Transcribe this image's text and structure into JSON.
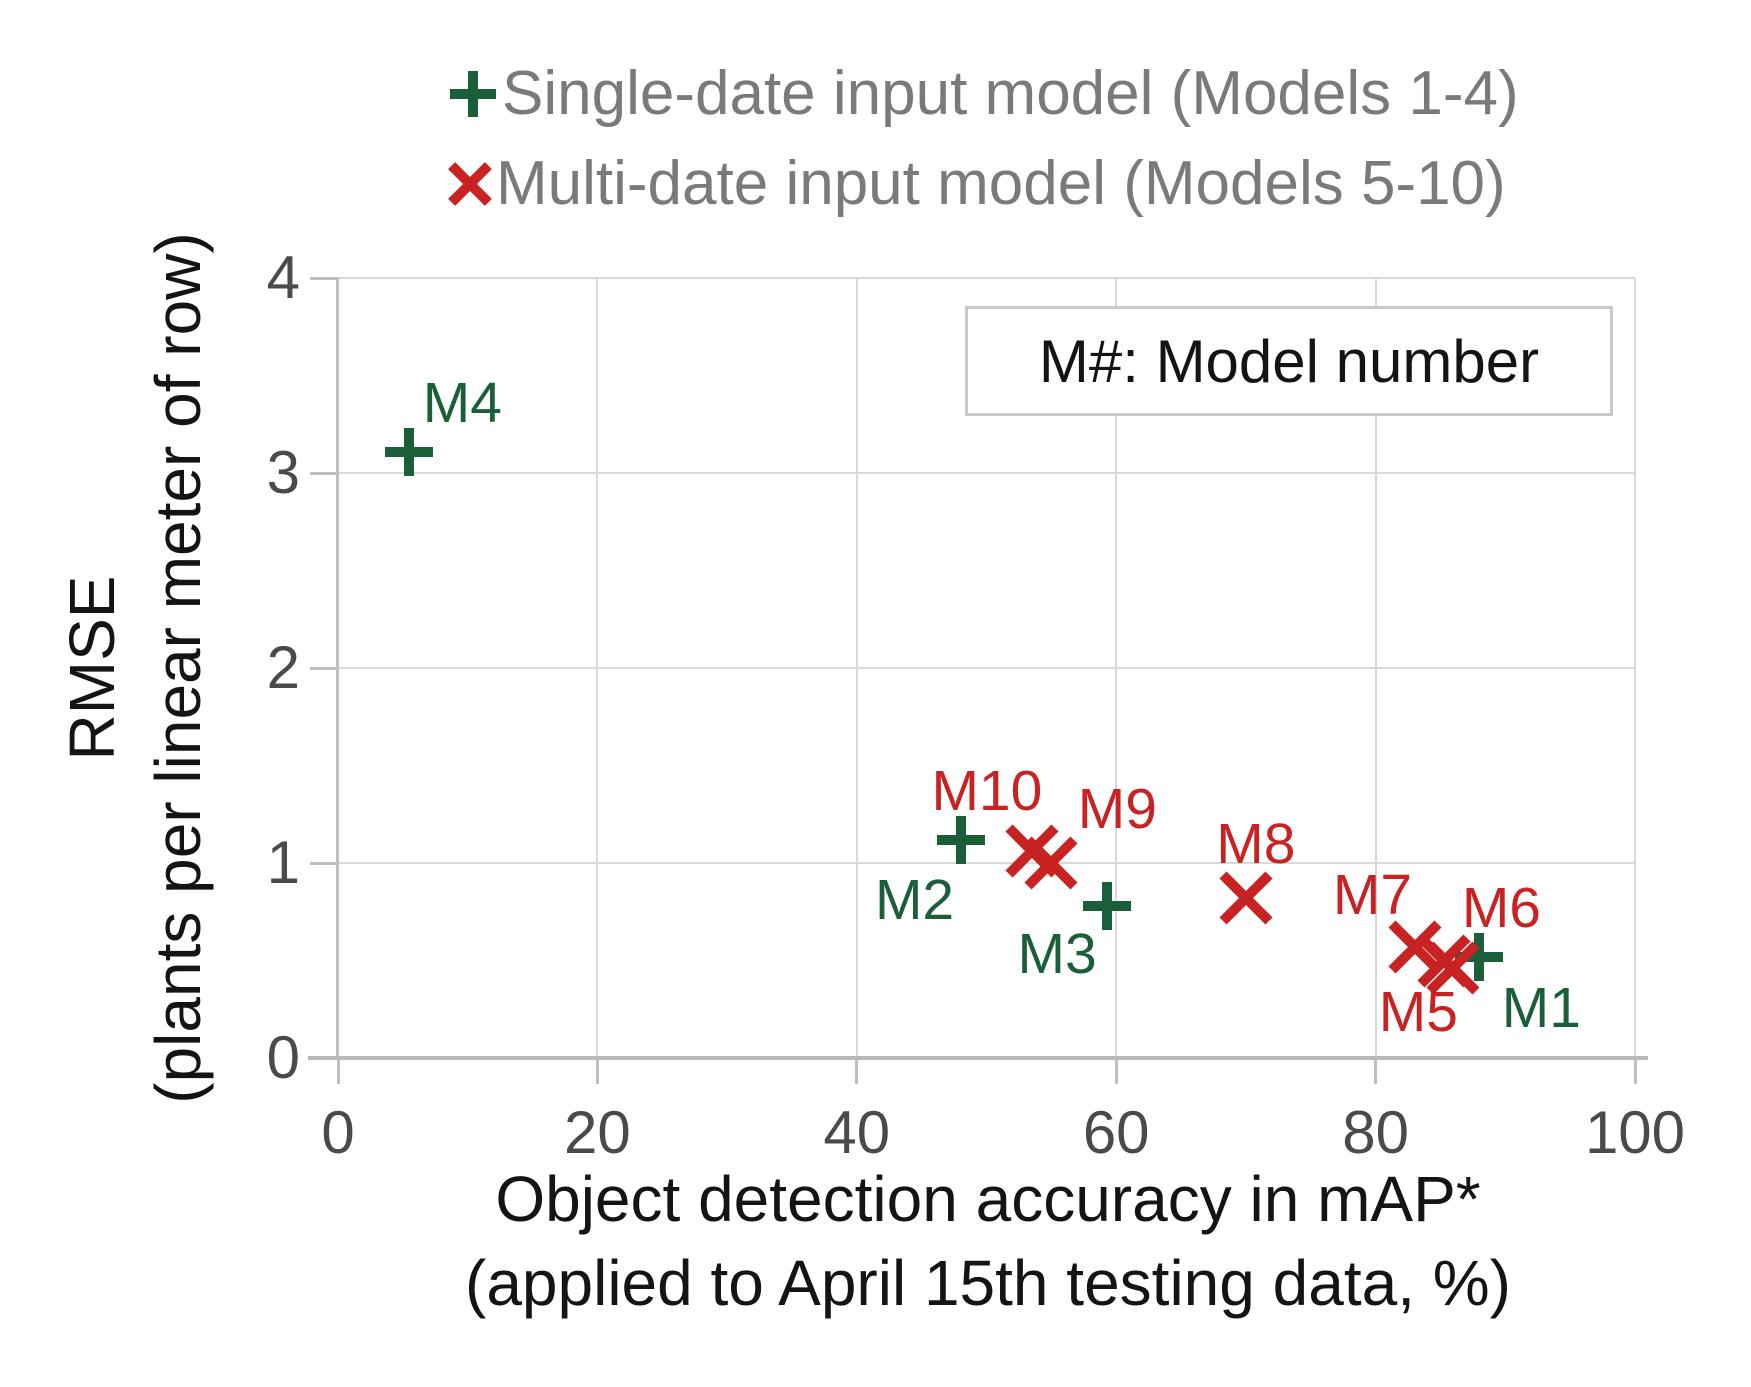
{
  "legend": {
    "text_color": "#7a7a7a",
    "items": [
      {
        "label": "Single-date input model (Models 1-4)",
        "marker": "plus",
        "color": "#1b5e3a"
      },
      {
        "label": "Multi-date input model (Models 5-10)",
        "marker": "cross",
        "color": "#c92222"
      }
    ]
  },
  "annotation_box": {
    "text": "M#: Model number"
  },
  "axes": {
    "x": {
      "title_line1": "Object detection accuracy in mAP*",
      "title_line2": "(applied to April 15th testing data, %)",
      "ticks": [
        0,
        20,
        40,
        60,
        80,
        100
      ]
    },
    "y": {
      "title_line1": "RMSE",
      "title_line2": "(plants per linear meter of row)",
      "ticks": [
        0,
        1,
        2,
        3,
        4
      ]
    }
  },
  "chart_data": {
    "type": "scatter",
    "title": "",
    "xlabel": "Object detection accuracy in mAP* (applied to April 15th testing data, %)",
    "ylabel": "RMSE (plants per linear meter of row)",
    "xlim": [
      0,
      100
    ],
    "ylim": [
      0,
      4
    ],
    "grid": true,
    "legend_position": "top",
    "annotation": "M#: Model number",
    "series": [
      {
        "name": "Single-date input model (Models 1-4)",
        "marker": "plus",
        "color": "#1b5e3a",
        "points": [
          {
            "label": "M1",
            "x": 88,
            "y": 0.52,
            "label_offset": [
              62,
              51
            ]
          },
          {
            "label": "M2",
            "x": 48,
            "y": 1.12,
            "label_offset": [
              -46,
              60
            ]
          },
          {
            "label": "M3",
            "x": 59.3,
            "y": 0.78,
            "label_offset": [
              -50,
              48
            ]
          },
          {
            "label": "M4",
            "x": 5.5,
            "y": 3.11,
            "label_offset": [
              53,
              -49
            ]
          }
        ]
      },
      {
        "name": "Multi-date input model (Models 5-10)",
        "marker": "cross",
        "color": "#c92222",
        "points": [
          {
            "label": "M5",
            "x": 85.3,
            "y": 0.5,
            "label_offset": [
              -26,
              51
            ]
          },
          {
            "label": "M6",
            "x": 86,
            "y": 0.46,
            "label_offset": [
              48,
              -60
            ]
          },
          {
            "label": "M7",
            "x": 83,
            "y": 0.57,
            "label_offset": [
              -42,
              -52
            ]
          },
          {
            "label": "M8",
            "x": 70,
            "y": 0.82,
            "label_offset": [
              10,
              -54
            ]
          },
          {
            "label": "M9",
            "x": 55,
            "y": 1.0,
            "label_offset": [
              66,
              -54
            ]
          },
          {
            "label": "M10",
            "x": 53.5,
            "y": 1.06,
            "label_offset": [
              -45,
              -60
            ]
          }
        ]
      }
    ]
  }
}
